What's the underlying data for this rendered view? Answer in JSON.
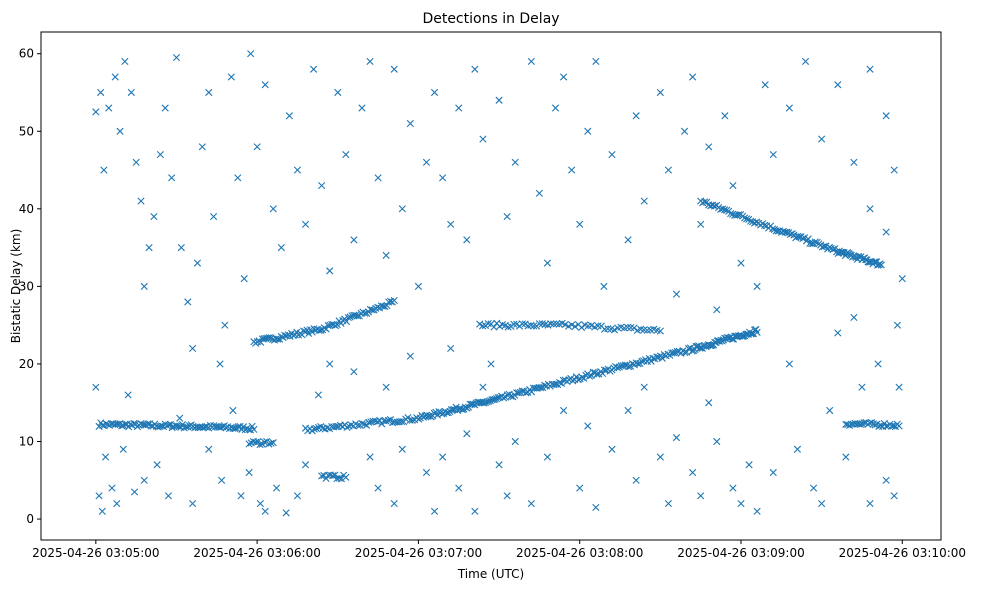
{
  "chart_data": {
    "type": "scatter",
    "title": "Detections in Delay",
    "xlabel": "Time (UTC)",
    "ylabel": "Bistatic Delay (km)",
    "x_units": "minutes after 2025-04-26 03:05:00",
    "xlim": [
      -0.34,
      5.24
    ],
    "ylim": [
      -2.7,
      62.8
    ],
    "x_ticks": [
      {
        "value": 0,
        "label": "2025-04-26 03:05:00"
      },
      {
        "value": 1,
        "label": "2025-04-26 03:06:00"
      },
      {
        "value": 2,
        "label": "2025-04-26 03:07:00"
      },
      {
        "value": 3,
        "label": "2025-04-26 03:08:00"
      },
      {
        "value": 4,
        "label": "2025-04-26 03:09:00"
      },
      {
        "value": 5,
        "label": "2025-04-26 03:10:00"
      }
    ],
    "y_ticks": [
      0,
      10,
      20,
      30,
      40,
      50,
      60
    ],
    "marker": "x",
    "color": "#1f77b4",
    "grid": false,
    "tracks": [
      {
        "name": "track-1",
        "count": 90,
        "knots": [
          [
            0.02,
            12.2
          ],
          [
            0.5,
            12.0
          ],
          [
            0.98,
            11.7
          ]
        ]
      },
      {
        "name": "track-2",
        "count": 80,
        "knots": [
          [
            0.98,
            22.8
          ],
          [
            1.4,
            24.5
          ],
          [
            1.85,
            28.0
          ]
        ]
      },
      {
        "name": "track-3",
        "count": 260,
        "knots": [
          [
            1.3,
            11.5
          ],
          [
            2.0,
            13.0
          ],
          [
            2.5,
            15.5
          ],
          [
            3.1,
            18.8
          ],
          [
            3.7,
            21.9
          ],
          [
            4.1,
            24.3
          ]
        ]
      },
      {
        "name": "track-4",
        "count": 60,
        "knots": [
          [
            2.38,
            25.0
          ],
          [
            2.9,
            25.0
          ],
          [
            3.5,
            24.3
          ]
        ]
      },
      {
        "name": "track-5",
        "count": 110,
        "knots": [
          [
            3.75,
            41.0
          ],
          [
            4.2,
            37.5
          ],
          [
            4.6,
            34.5
          ],
          [
            4.87,
            32.8
          ]
        ]
      },
      {
        "name": "track-6",
        "count": 30,
        "knots": [
          [
            4.65,
            12.3
          ],
          [
            4.98,
            12.1
          ]
        ]
      },
      {
        "name": "track-7",
        "count": 12,
        "knots": [
          [
            1.4,
            5.5
          ],
          [
            1.55,
            5.4
          ]
        ]
      },
      {
        "name": "track-8",
        "count": 12,
        "knots": [
          [
            0.95,
            9.8
          ],
          [
            1.1,
            9.9
          ]
        ]
      }
    ],
    "noise": [
      [
        0.0,
        52.5
      ],
      [
        0.03,
        55
      ],
      [
        0.05,
        45
      ],
      [
        0.08,
        53
      ],
      [
        0.12,
        57
      ],
      [
        0.15,
        50
      ],
      [
        0.18,
        59
      ],
      [
        0.22,
        55
      ],
      [
        0.25,
        46
      ],
      [
        0.28,
        41
      ],
      [
        0.3,
        30
      ],
      [
        0.33,
        35
      ],
      [
        0.36,
        39
      ],
      [
        0.4,
        47
      ],
      [
        0.43,
        53
      ],
      [
        0.47,
        44
      ],
      [
        0.5,
        59.5
      ],
      [
        0.53,
        35
      ],
      [
        0.57,
        28
      ],
      [
        0.6,
        22
      ],
      [
        0.63,
        33
      ],
      [
        0.66,
        48
      ],
      [
        0.7,
        55
      ],
      [
        0.73,
        39
      ],
      [
        0.77,
        20
      ],
      [
        0.8,
        25
      ],
      [
        0.84,
        57
      ],
      [
        0.88,
        44
      ],
      [
        0.92,
        31
      ],
      [
        0.96,
        60
      ],
      [
        0.0,
        17
      ],
      [
        0.02,
        3
      ],
      [
        0.04,
        1
      ],
      [
        0.06,
        8
      ],
      [
        0.1,
        4
      ],
      [
        0.13,
        2
      ],
      [
        0.17,
        9
      ],
      [
        0.2,
        16
      ],
      [
        0.24,
        3.5
      ],
      [
        0.3,
        5
      ],
      [
        0.38,
        7
      ],
      [
        0.45,
        3
      ],
      [
        0.52,
        13
      ],
      [
        0.6,
        2
      ],
      [
        0.7,
        9
      ],
      [
        0.78,
        5
      ],
      [
        0.85,
        14
      ],
      [
        0.9,
        3
      ],
      [
        0.95,
        6
      ],
      [
        1.02,
        2
      ],
      [
        1.05,
        1
      ],
      [
        1.12,
        4
      ],
      [
        1.18,
        0.8
      ],
      [
        1.25,
        3
      ],
      [
        1.3,
        7
      ],
      [
        1.38,
        16
      ],
      [
        1.45,
        20
      ],
      [
        1.0,
        48
      ],
      [
        1.05,
        56
      ],
      [
        1.1,
        40
      ],
      [
        1.15,
        35
      ],
      [
        1.2,
        52
      ],
      [
        1.25,
        45
      ],
      [
        1.3,
        38
      ],
      [
        1.35,
        58
      ],
      [
        1.4,
        43
      ],
      [
        1.45,
        32
      ],
      [
        1.5,
        55
      ],
      [
        1.55,
        47
      ],
      [
        1.6,
        36
      ],
      [
        1.65,
        53
      ],
      [
        1.7,
        59
      ],
      [
        1.75,
        44
      ],
      [
        1.8,
        34
      ],
      [
        1.85,
        58
      ],
      [
        1.9,
        40
      ],
      [
        1.95,
        51
      ],
      [
        1.6,
        19
      ],
      [
        1.7,
        8
      ],
      [
        1.75,
        4
      ],
      [
        1.8,
        17
      ],
      [
        1.85,
        2
      ],
      [
        1.9,
        9
      ],
      [
        1.95,
        21
      ],
      [
        2.0,
        30
      ],
      [
        2.05,
        6
      ],
      [
        2.1,
        1
      ],
      [
        2.15,
        8
      ],
      [
        2.2,
        22
      ],
      [
        2.25,
        4
      ],
      [
        2.3,
        11
      ],
      [
        2.35,
        1
      ],
      [
        2.4,
        17
      ],
      [
        2.45,
        20
      ],
      [
        2.5,
        7
      ],
      [
        2.55,
        3
      ],
      [
        2.6,
        10
      ],
      [
        2.7,
        2
      ],
      [
        2.8,
        8
      ],
      [
        2.9,
        14
      ],
      [
        2.05,
        46
      ],
      [
        2.1,
        55
      ],
      [
        2.15,
        44
      ],
      [
        2.2,
        38
      ],
      [
        2.25,
        53
      ],
      [
        2.3,
        36
      ],
      [
        2.35,
        58
      ],
      [
        2.4,
        49
      ],
      [
        2.5,
        54
      ],
      [
        2.55,
        39
      ],
      [
        2.6,
        46
      ],
      [
        2.7,
        59
      ],
      [
        2.75,
        42
      ],
      [
        2.8,
        33
      ],
      [
        2.85,
        53
      ],
      [
        2.9,
        57
      ],
      [
        2.95,
        45
      ],
      [
        3.0,
        38
      ],
      [
        3.05,
        50
      ],
      [
        3.1,
        59
      ],
      [
        3.15,
        30
      ],
      [
        3.2,
        47
      ],
      [
        3.3,
        36
      ],
      [
        3.35,
        52
      ],
      [
        3.4,
        41
      ],
      [
        3.0,
        4
      ],
      [
        3.05,
        12
      ],
      [
        3.1,
        1.5
      ],
      [
        3.2,
        9
      ],
      [
        3.3,
        14
      ],
      [
        3.35,
        5
      ],
      [
        3.4,
        17
      ],
      [
        3.5,
        8
      ],
      [
        3.55,
        2
      ],
      [
        3.6,
        10.5
      ],
      [
        3.7,
        6
      ],
      [
        3.75,
        3
      ],
      [
        3.8,
        15
      ],
      [
        3.85,
        10
      ],
      [
        3.95,
        4
      ],
      [
        4.0,
        2
      ],
      [
        4.05,
        7
      ],
      [
        3.5,
        55
      ],
      [
        3.55,
        45
      ],
      [
        3.6,
        29
      ],
      [
        3.65,
        50
      ],
      [
        3.7,
        57
      ],
      [
        3.75,
        38
      ],
      [
        3.8,
        48
      ],
      [
        3.85,
        27
      ],
      [
        3.9,
        52
      ],
      [
        3.95,
        43
      ],
      [
        4.0,
        33
      ],
      [
        4.1,
        30
      ],
      [
        4.15,
        56
      ],
      [
        4.2,
        47
      ],
      [
        4.3,
        53
      ],
      [
        4.4,
        59
      ],
      [
        4.5,
        49
      ],
      [
        4.6,
        56
      ],
      [
        4.7,
        46
      ],
      [
        4.8,
        58
      ],
      [
        4.9,
        52
      ],
      [
        4.95,
        45
      ],
      [
        4.1,
        1
      ],
      [
        4.2,
        6
      ],
      [
        4.3,
        20
      ],
      [
        4.35,
        9
      ],
      [
        4.45,
        4
      ],
      [
        4.5,
        2
      ],
      [
        4.55,
        14
      ],
      [
        4.6,
        24
      ],
      [
        4.65,
        8
      ],
      [
        4.75,
        17
      ],
      [
        4.8,
        2
      ],
      [
        4.85,
        20
      ],
      [
        4.9,
        5
      ],
      [
        4.95,
        3
      ],
      [
        4.98,
        17
      ],
      [
        4.97,
        25
      ],
      [
        5.0,
        31
      ],
      [
        4.9,
        37
      ],
      [
        4.8,
        40
      ],
      [
        4.7,
        26
      ]
    ]
  }
}
